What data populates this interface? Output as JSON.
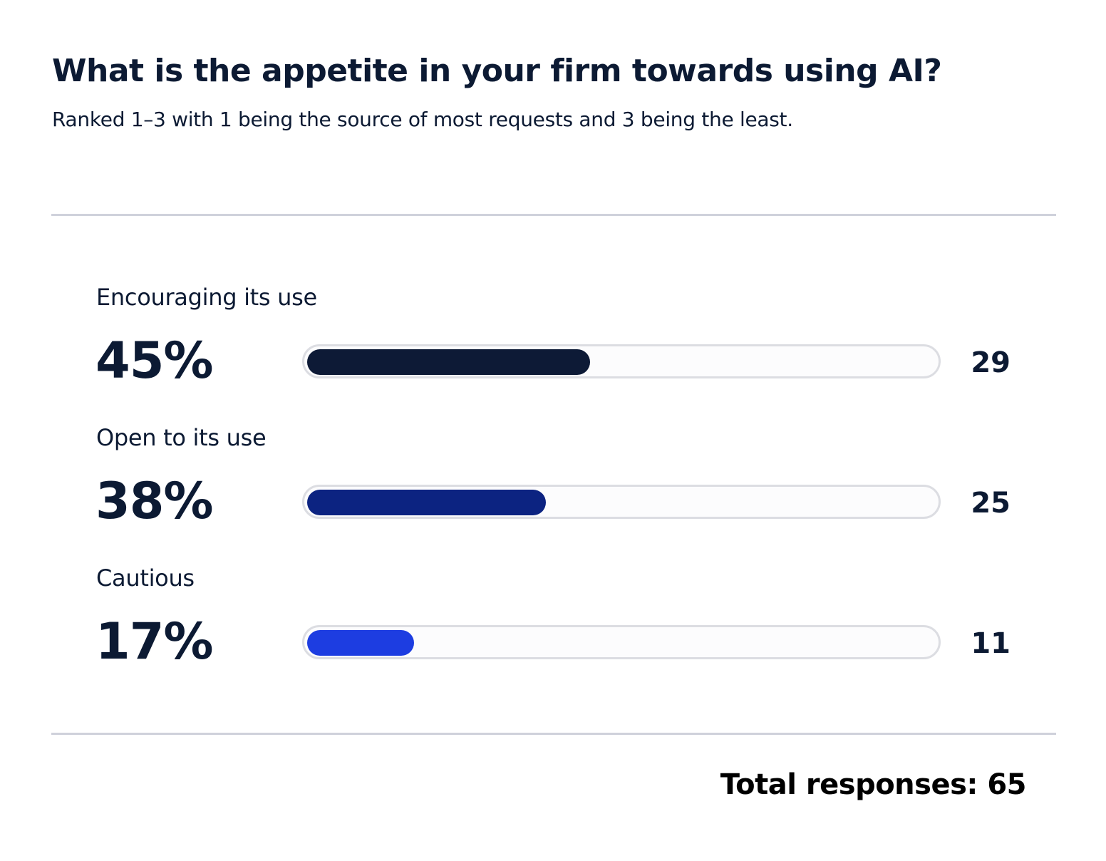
{
  "chart_data": {
    "type": "bar",
    "title": "What is the appetite in your firm towards using AI?",
    "subtitle": "Ranked 1–3 with 1 being the source of most requests and 3 being the least.",
    "categories": [
      "Encouraging its use",
      "Open to its use",
      "Cautious"
    ],
    "percent_labels": [
      "45%",
      "38%",
      "17%"
    ],
    "values": [
      45,
      38,
      17
    ],
    "counts": [
      "29",
      "25",
      "11"
    ],
    "colors": [
      "#0d1a36",
      "#0c2381",
      "#1d3de1"
    ],
    "xlim": [
      0,
      100
    ],
    "total_label": "Total responses: 65"
  }
}
